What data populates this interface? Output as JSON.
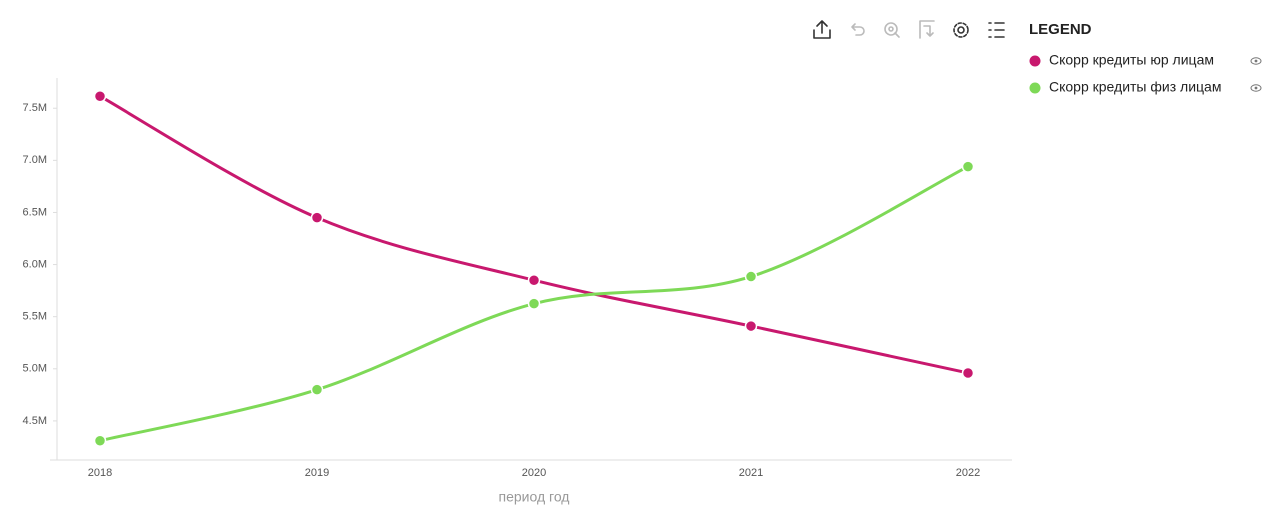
{
  "chart_data": {
    "type": "line",
    "legend_title": "LEGEND",
    "x_label": "период год",
    "categories": [
      "2018",
      "2019",
      "2020",
      "2021",
      "2022"
    ],
    "series": [
      {
        "name": "Скорр кредиты юр лицам",
        "color": "#c8186e",
        "values": [
          7615000,
          6450000,
          5850000,
          5410000,
          4960000
        ]
      },
      {
        "name": "Скорр кредиты физ лицам",
        "color": "#7ed957",
        "values": [
          4310000,
          4800000,
          5625000,
          5885000,
          6940000
        ]
      }
    ],
    "ylim": [
      4125000,
      7790000
    ],
    "yticks": [
      {
        "value": 4500000,
        "label": "4.5M"
      },
      {
        "value": 5000000,
        "label": "5.0M"
      },
      {
        "value": 5500000,
        "label": "5.5M"
      },
      {
        "value": 6000000,
        "label": "6.0M"
      },
      {
        "value": 6500000,
        "label": "6.5M"
      },
      {
        "value": 7000000,
        "label": "7.0M"
      },
      {
        "value": 7500000,
        "label": "7.5M"
      }
    ],
    "smooth": true
  }
}
